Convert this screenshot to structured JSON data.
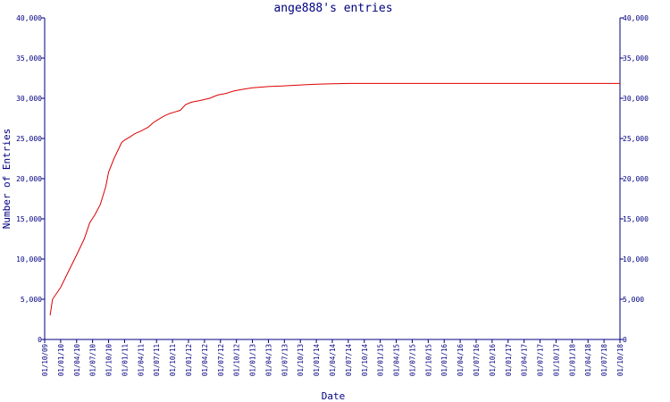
{
  "chart_data": {
    "type": "line",
    "title": "ange888's entries",
    "xlabel": "Date",
    "ylabel": "Number of Entries",
    "ylim": [
      0,
      40000
    ],
    "y_ticks": [
      "0",
      "5,000",
      "10,000",
      "15,000",
      "20,000",
      "25,000",
      "30,000",
      "35,000",
      "40,000"
    ],
    "x_ticks": [
      "01/10/09",
      "01/01/10",
      "01/04/10",
      "01/07/10",
      "01/10/10",
      "01/01/11",
      "01/04/11",
      "01/07/11",
      "01/10/11",
      "01/01/12",
      "01/04/12",
      "01/07/12",
      "01/10/12",
      "01/01/13",
      "01/04/13",
      "01/07/13",
      "01/10/13",
      "01/01/14",
      "01/04/14",
      "01/07/14",
      "01/10/14",
      "01/01/15",
      "01/04/15",
      "01/07/15",
      "01/10/15",
      "01/01/16",
      "01/04/16",
      "01/07/16",
      "01/10/16",
      "01/01/17",
      "01/04/17",
      "01/07/17",
      "01/10/17",
      "01/01/18",
      "01/04/18",
      "01/07/18",
      "01/10/18"
    ],
    "grid": false,
    "line_color": "#dd0000",
    "axis_color": "#000080",
    "series": [
      {
        "x": [
          "2009-11-01",
          "2009-11-15",
          "2010-01-01",
          "2010-02-15",
          "2010-04-01",
          "2010-05-15",
          "2010-06-15",
          "2010-07-15",
          "2010-08-15",
          "2010-09-15",
          "2010-10-01",
          "2010-11-01",
          "2010-12-15",
          "2011-01-01",
          "2011-02-01",
          "2011-03-01",
          "2011-04-01",
          "2011-05-15",
          "2011-06-15",
          "2011-07-15",
          "2011-08-15",
          "2011-09-15",
          "2011-10-15",
          "2011-11-15",
          "2011-12-15",
          "2012-01-15",
          "2012-03-01",
          "2012-05-01",
          "2012-06-15",
          "2012-08-01",
          "2012-09-15",
          "2012-11-01",
          "2013-01-01",
          "2013-04-01",
          "2013-07-01",
          "2013-10-01",
          "2014-01-01",
          "2014-04-01",
          "2014-07-01",
          "2015-01-01",
          "2016-01-01",
          "2017-01-01",
          "2018-01-01",
          "2018-10-01"
        ],
        "y": [
          3000,
          5000,
          6500,
          8500,
          10500,
          12500,
          14500,
          15500,
          16800,
          19000,
          20800,
          22500,
          24500,
          24800,
          25200,
          25600,
          25900,
          26400,
          27000,
          27400,
          27800,
          28100,
          28300,
          28500,
          29200,
          29500,
          29700,
          30000,
          30400,
          30600,
          30900,
          31100,
          31300,
          31450,
          31550,
          31650,
          31750,
          31800,
          31850,
          31850,
          31850,
          31850,
          31850,
          31850
        ]
      }
    ]
  }
}
